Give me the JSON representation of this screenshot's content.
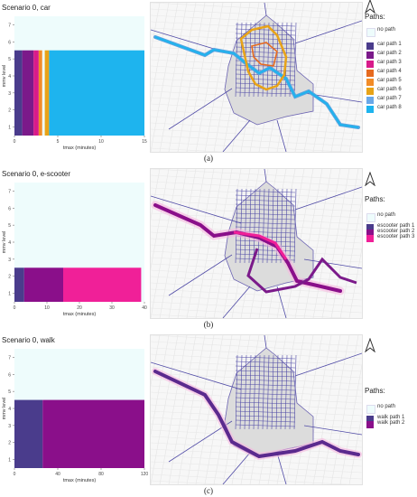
{
  "chart_data": [
    {
      "type": "bar",
      "title": "Scenario 0, car",
      "xlabel": "tmax (minutes)",
      "ylabel": "mmv level",
      "xlim": [
        0,
        15
      ],
      "ylim": [
        0.5,
        7.5
      ],
      "xticks": [
        0,
        5,
        10,
        15
      ],
      "yticks": [
        1,
        2,
        3,
        4,
        5,
        6,
        7
      ],
      "series_top": 5.5,
      "segments": [
        {
          "name": "car path 1",
          "start": 0.0,
          "end": 0.9,
          "color": "#4a3c8c"
        },
        {
          "name": "car path 2",
          "start": 0.9,
          "end": 2.2,
          "color": "#7b1a8a"
        },
        {
          "name": "car path 3",
          "start": 2.2,
          "end": 2.8,
          "color": "#d81b8a"
        },
        {
          "name": "car path 5",
          "start": 2.8,
          "end": 3.2,
          "color": "#f28c28"
        },
        {
          "name": "car path 6",
          "start": 3.5,
          "end": 4.0,
          "color": "#e8a317"
        },
        {
          "name": "car path 8",
          "start": 4.0,
          "end": 15.0,
          "color": "#1eb4ee"
        }
      ],
      "background_label": "no path",
      "background_color": "#eefcfc",
      "legend_title": "Paths:",
      "legend": [
        {
          "label": "no path",
          "color": "#eefcfc"
        },
        {
          "label": "car path 1",
          "color": "#4a3c8c"
        },
        {
          "label": "car path 2",
          "color": "#7b1a8a"
        },
        {
          "label": "car path 3",
          "color": "#d81b8a"
        },
        {
          "label": "car path 4",
          "color": "#e66a1f"
        },
        {
          "label": "car path 5",
          "color": "#f28c28"
        },
        {
          "label": "car path 6",
          "color": "#e8a317"
        },
        {
          "label": "car path 7",
          "color": "#6aa8e8"
        },
        {
          "label": "car path 8",
          "color": "#1eb4ee"
        }
      ],
      "panel_label": "(a)"
    },
    {
      "type": "bar",
      "title": "Scenario 0, e-scooter",
      "xlabel": "tmax (minutes)",
      "ylabel": "mmv level",
      "xlim": [
        0,
        40
      ],
      "ylim": [
        0.5,
        7.5
      ],
      "xticks": [
        0,
        10,
        20,
        30,
        40
      ],
      "yticks": [
        1,
        2,
        3,
        4,
        5,
        6,
        7
      ],
      "series_top": 2.5,
      "segments": [
        {
          "name": "escooter path 1",
          "start": 0,
          "end": 3,
          "color": "#4a3c8c"
        },
        {
          "name": "escooter path 2",
          "start": 3,
          "end": 15,
          "color": "#8a0f8a"
        },
        {
          "name": "escooter path 3",
          "start": 15,
          "end": 39,
          "color": "#f02098"
        }
      ],
      "background_label": "no path",
      "background_color": "#eefcfc",
      "legend_title": "Paths:",
      "legend": [
        {
          "label": "no path",
          "color": "#eefcfc"
        },
        {
          "label": "escooter path 1",
          "color": "#4a3c8c"
        },
        {
          "label": "escooter path 2",
          "color": "#8a0f8a"
        },
        {
          "label": "escooter path 3",
          "color": "#f02098"
        }
      ],
      "panel_label": "(b)"
    },
    {
      "type": "bar",
      "title": "Scenario 0, walk",
      "xlabel": "tmax (minutes)",
      "ylabel": "mmv level",
      "xlim": [
        0,
        120
      ],
      "ylim": [
        0.5,
        7.5
      ],
      "xticks": [
        0,
        40,
        80,
        120
      ],
      "yticks": [
        1,
        2,
        3,
        4,
        5,
        6,
        7
      ],
      "series_top": 4.5,
      "segments": [
        {
          "name": "walk path 1",
          "start": 0,
          "end": 26,
          "color": "#4a3c8c"
        },
        {
          "name": "walk path 2",
          "start": 26,
          "end": 120,
          "color": "#8a0f8a"
        }
      ],
      "background_label": "no path",
      "background_color": "#eefcfc",
      "legend_title": "Paths:",
      "legend": [
        {
          "label": "no path",
          "color": "#eefcfc"
        },
        {
          "label": "walk path 1",
          "color": "#4a3c8c"
        },
        {
          "label": "walk path 2",
          "color": "#8a0f8a"
        }
      ],
      "panel_label": "(c)"
    }
  ]
}
